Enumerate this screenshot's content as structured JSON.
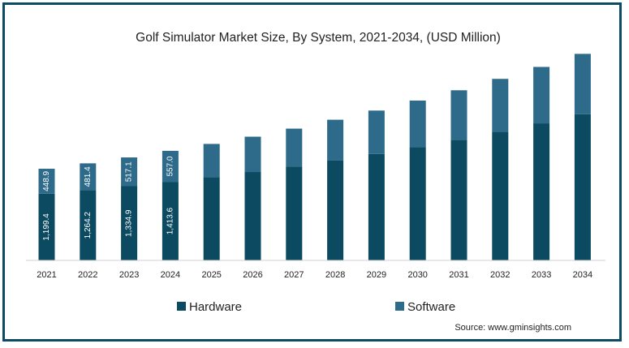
{
  "chart_data": {
    "type": "bar",
    "stacked": true,
    "title": "Golf Simulator Market Size, By System, 2021-2034, (USD Million)",
    "categories": [
      "2021",
      "2022",
      "2023",
      "2024",
      "2025",
      "2026",
      "2027",
      "2028",
      "2029",
      "2030",
      "2031",
      "2032",
      "2033",
      "2034"
    ],
    "series": [
      {
        "name": "Hardware",
        "color": "#0b4a60",
        "values": [
          1199.4,
          1264.2,
          1334.9,
          1413.6,
          1500,
          1590,
          1690,
          1800,
          1915,
          2040,
          2170,
          2315,
          2465,
          2630
        ],
        "labels": [
          "1,199.4",
          "1,264.2",
          "1,334.9",
          "1,413.6",
          null,
          null,
          null,
          null,
          null,
          null,
          null,
          null,
          null,
          null
        ]
      },
      {
        "name": "Software",
        "color": "#2e6b8a",
        "values": [
          448.9,
          481.4,
          517.1,
          557.0,
          595,
          635,
          680,
          730,
          780,
          835,
          890,
          950,
          1015,
          1085
        ],
        "labels": [
          "448.9",
          "481.4",
          "517.1",
          "557.0",
          null,
          null,
          null,
          null,
          null,
          null,
          null,
          null,
          null,
          null
        ]
      }
    ],
    "ylim": [
      0,
      4100
    ],
    "grid": false,
    "legend_position": "bottom"
  },
  "source": "Source: www.gminsights.com"
}
